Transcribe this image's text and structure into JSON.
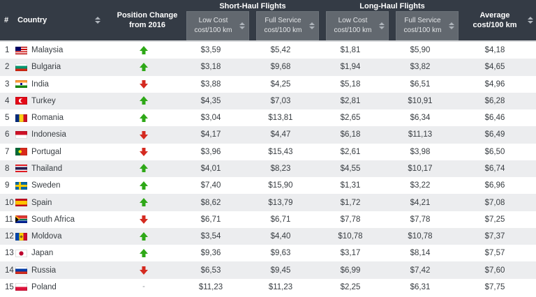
{
  "table": {
    "rank_header": "#",
    "country_header": "Country",
    "position_change_line1": "Position Change",
    "position_change_line2": "from 2016",
    "position_change_none_label": "-",
    "groups": [
      {
        "label": "Short-Haul Flights"
      },
      {
        "label": "Long-Haul Flights"
      }
    ],
    "subcolumns": [
      {
        "group": "short-haul",
        "line1": "Low Cost",
        "line2": "cost/100 km"
      },
      {
        "group": "short-haul",
        "line1": "Full Service",
        "line2": "cost/100 km"
      },
      {
        "group": "long-haul",
        "line1": "Low Cost",
        "line2": "cost/100 km"
      },
      {
        "group": "long-haul",
        "line1": "Full Service",
        "line2": "cost/100 km"
      }
    ],
    "average_line1": "Average",
    "average_line2": "cost/100 km"
  },
  "colors": {
    "header_bg": "#343b45",
    "subheader_bg": "#62686f",
    "row_alt_bg": "#ecedef",
    "up_arrow_green": "#2ea817",
    "down_arrow_red": "#d42a20"
  },
  "icons": [
    "sort-icon",
    "up-arrow-icon",
    "down-arrow-icon",
    "flag-icon"
  ],
  "rows": [
    {
      "rank": "1",
      "country": "Malaysia",
      "flag": "malaysia",
      "change": "up",
      "sh_low": "$3,59",
      "sh_full": "$5,42",
      "lh_low": "$1,81",
      "lh_full": "$5,90",
      "average": "$4,18"
    },
    {
      "rank": "2",
      "country": "Bulgaria",
      "flag": "bulgaria",
      "change": "up",
      "sh_low": "$3,18",
      "sh_full": "$9,68",
      "lh_low": "$1,94",
      "lh_full": "$3,82",
      "average": "$4,65"
    },
    {
      "rank": "3",
      "country": "India",
      "flag": "india",
      "change": "down",
      "sh_low": "$3,88",
      "sh_full": "$4,25",
      "lh_low": "$5,18",
      "lh_full": "$6,51",
      "average": "$4,96"
    },
    {
      "rank": "4",
      "country": "Turkey",
      "flag": "turkey",
      "change": "up",
      "sh_low": "$4,35",
      "sh_full": "$7,03",
      "lh_low": "$2,81",
      "lh_full": "$10,91",
      "average": "$6,28"
    },
    {
      "rank": "5",
      "country": "Romania",
      "flag": "romania",
      "change": "up",
      "sh_low": "$3,04",
      "sh_full": "$13,81",
      "lh_low": "$2,65",
      "lh_full": "$6,34",
      "average": "$6,46"
    },
    {
      "rank": "6",
      "country": "Indonesia",
      "flag": "indonesia",
      "change": "down",
      "sh_low": "$4,17",
      "sh_full": "$4,47",
      "lh_low": "$6,18",
      "lh_full": "$11,13",
      "average": "$6,49"
    },
    {
      "rank": "7",
      "country": "Portugal",
      "flag": "portugal",
      "change": "down",
      "sh_low": "$3,96",
      "sh_full": "$15,43",
      "lh_low": "$2,61",
      "lh_full": "$3,98",
      "average": "$6,50"
    },
    {
      "rank": "8",
      "country": "Thailand",
      "flag": "thailand",
      "change": "up",
      "sh_low": "$4,01",
      "sh_full": "$8,23",
      "lh_low": "$4,55",
      "lh_full": "$10,17",
      "average": "$6,74"
    },
    {
      "rank": "9",
      "country": "Sweden",
      "flag": "sweden",
      "change": "up",
      "sh_low": "$7,40",
      "sh_full": "$15,90",
      "lh_low": "$1,31",
      "lh_full": "$3,22",
      "average": "$6,96"
    },
    {
      "rank": "10",
      "country": "Spain",
      "flag": "spain",
      "change": "up",
      "sh_low": "$8,62",
      "sh_full": "$13,79",
      "lh_low": "$1,72",
      "lh_full": "$4,21",
      "average": "$7,08"
    },
    {
      "rank": "11",
      "country": "South Africa",
      "flag": "south-africa",
      "change": "down",
      "sh_low": "$6,71",
      "sh_full": "$6,71",
      "lh_low": "$7,78",
      "lh_full": "$7,78",
      "average": "$7,25"
    },
    {
      "rank": "12",
      "country": "Moldova",
      "flag": "moldova",
      "change": "up",
      "sh_low": "$3,54",
      "sh_full": "$4,40",
      "lh_low": "$10,78",
      "lh_full": "$10,78",
      "average": "$7,37"
    },
    {
      "rank": "13",
      "country": "Japan",
      "flag": "japan",
      "change": "up",
      "sh_low": "$9,36",
      "sh_full": "$9,63",
      "lh_low": "$3,17",
      "lh_full": "$8,14",
      "average": "$7,57"
    },
    {
      "rank": "14",
      "country": "Russia",
      "flag": "russia",
      "change": "down",
      "sh_low": "$6,53",
      "sh_full": "$9,45",
      "lh_low": "$6,99",
      "lh_full": "$7,42",
      "average": "$7,60"
    },
    {
      "rank": "15",
      "country": "Poland",
      "flag": "poland",
      "change": "none",
      "sh_low": "$11,23",
      "sh_full": "$11,23",
      "lh_low": "$2,25",
      "lh_full": "$6,31",
      "average": "$7,75"
    }
  ]
}
